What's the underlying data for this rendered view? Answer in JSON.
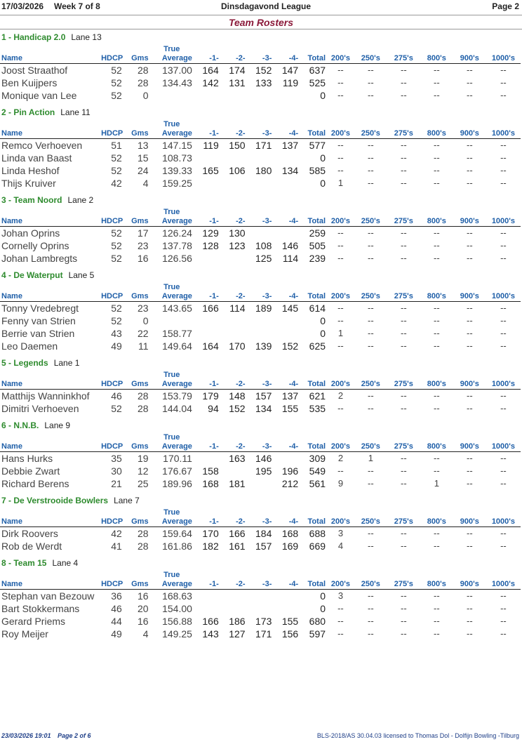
{
  "header": {
    "date": "17/03/2026",
    "week": "Week 7 of 8",
    "league": "Dinsdagavond League",
    "page": "Page 2"
  },
  "title": "Team Rosters",
  "columns": {
    "true_label": "True",
    "labels": [
      "Name",
      "HDCP",
      "Gms",
      "Average",
      "-1-",
      "-2-",
      "-3-",
      "-4-",
      "Total",
      "200's",
      "250's",
      "275's",
      "800's",
      "900's",
      "1000's"
    ]
  },
  "teams": [
    {
      "name": "1 - Handicap 2.0",
      "lane": "Lane 13",
      "players": [
        {
          "name": "Joost Straathof",
          "hdcp": "52",
          "gms": "28",
          "avg": "137.00",
          "g1": "164",
          "g2": "174",
          "g3": "152",
          "g4": "147",
          "total": "637",
          "s200": "--",
          "s250": "--",
          "s275": "--",
          "s800": "--",
          "s900": "--",
          "s1000": "--"
        },
        {
          "name": "Ben Kuijpers",
          "hdcp": "52",
          "gms": "28",
          "avg": "134.43",
          "g1": "142",
          "g2": "131",
          "g3": "133",
          "g4": "119",
          "total": "525",
          "s200": "--",
          "s250": "--",
          "s275": "--",
          "s800": "--",
          "s900": "--",
          "s1000": "--"
        },
        {
          "name": "Monique van Lee",
          "hdcp": "52",
          "gms": "0",
          "avg": "",
          "g1": "",
          "g2": "",
          "g3": "",
          "g4": "",
          "total": "0",
          "s200": "--",
          "s250": "--",
          "s275": "--",
          "s800": "--",
          "s900": "--",
          "s1000": "--"
        }
      ]
    },
    {
      "name": "2 - Pin Action",
      "lane": "Lane 11",
      "players": [
        {
          "name": "Remco Verhoeven",
          "hdcp": "51",
          "gms": "13",
          "avg": "147.15",
          "g1": "119",
          "g2": "150",
          "g3": "171",
          "g4": "137",
          "total": "577",
          "s200": "--",
          "s250": "--",
          "s275": "--",
          "s800": "--",
          "s900": "--",
          "s1000": "--"
        },
        {
          "name": "Linda van Baast",
          "hdcp": "52",
          "gms": "15",
          "avg": "108.73",
          "g1": "",
          "g2": "",
          "g3": "",
          "g4": "",
          "total": "0",
          "s200": "--",
          "s250": "--",
          "s275": "--",
          "s800": "--",
          "s900": "--",
          "s1000": "--"
        },
        {
          "name": "Linda Heshof",
          "hdcp": "52",
          "gms": "24",
          "avg": "139.33",
          "g1": "165",
          "g2": "106",
          "g3": "180",
          "g4": "134",
          "total": "585",
          "s200": "--",
          "s250": "--",
          "s275": "--",
          "s800": "--",
          "s900": "--",
          "s1000": "--"
        },
        {
          "name": "Thijs Kruiver",
          "hdcp": "42",
          "gms": "4",
          "avg": "159.25",
          "g1": "",
          "g2": "",
          "g3": "",
          "g4": "",
          "total": "0",
          "s200": "1",
          "s250": "--",
          "s275": "--",
          "s800": "--",
          "s900": "--",
          "s1000": "--"
        }
      ]
    },
    {
      "name": "3 - Team Noord",
      "lane": "Lane 2",
      "players": [
        {
          "name": "Johan Oprins",
          "hdcp": "52",
          "gms": "17",
          "avg": "126.24",
          "g1": "129",
          "g2": "130",
          "g3": "",
          "g4": "",
          "total": "259",
          "s200": "--",
          "s250": "--",
          "s275": "--",
          "s800": "--",
          "s900": "--",
          "s1000": "--"
        },
        {
          "name": "Cornelly Oprins",
          "hdcp": "52",
          "gms": "23",
          "avg": "137.78",
          "g1": "128",
          "g2": "123",
          "g3": "108",
          "g4": "146",
          "total": "505",
          "s200": "--",
          "s250": "--",
          "s275": "--",
          "s800": "--",
          "s900": "--",
          "s1000": "--"
        },
        {
          "name": "Johan Lambregts",
          "hdcp": "52",
          "gms": "16",
          "avg": "126.56",
          "g1": "",
          "g2": "",
          "g3": "125",
          "g4": "114",
          "total": "239",
          "s200": "--",
          "s250": "--",
          "s275": "--",
          "s800": "--",
          "s900": "--",
          "s1000": "--"
        }
      ]
    },
    {
      "name": "4 - De Waterput",
      "lane": "Lane 5",
      "players": [
        {
          "name": "Tonny Vredebregt",
          "hdcp": "52",
          "gms": "23",
          "avg": "143.65",
          "g1": "166",
          "g2": "114",
          "g3": "189",
          "g4": "145",
          "total": "614",
          "s200": "--",
          "s250": "--",
          "s275": "--",
          "s800": "--",
          "s900": "--",
          "s1000": "--"
        },
        {
          "name": "Fenny van Strien",
          "hdcp": "52",
          "gms": "0",
          "avg": "",
          "g1": "",
          "g2": "",
          "g3": "",
          "g4": "",
          "total": "0",
          "s200": "--",
          "s250": "--",
          "s275": "--",
          "s800": "--",
          "s900": "--",
          "s1000": "--"
        },
        {
          "name": "Berrie van Strien",
          "hdcp": "43",
          "gms": "22",
          "avg": "158.77",
          "g1": "",
          "g2": "",
          "g3": "",
          "g4": "",
          "total": "0",
          "s200": "1",
          "s250": "--",
          "s275": "--",
          "s800": "--",
          "s900": "--",
          "s1000": "--"
        },
        {
          "name": "Leo Daemen",
          "hdcp": "49",
          "gms": "11",
          "avg": "149.64",
          "g1": "164",
          "g2": "170",
          "g3": "139",
          "g4": "152",
          "total": "625",
          "s200": "--",
          "s250": "--",
          "s275": "--",
          "s800": "--",
          "s900": "--",
          "s1000": "--"
        }
      ]
    },
    {
      "name": "5 - Legends",
      "lane": "Lane 1",
      "players": [
        {
          "name": "Matthijs Wanninkhof",
          "hdcp": "46",
          "gms": "28",
          "avg": "153.79",
          "g1": "179",
          "g2": "148",
          "g3": "157",
          "g4": "137",
          "total": "621",
          "s200": "2",
          "s250": "--",
          "s275": "--",
          "s800": "--",
          "s900": "--",
          "s1000": "--"
        },
        {
          "name": "Dimitri Verhoeven",
          "hdcp": "52",
          "gms": "28",
          "avg": "144.04",
          "g1": "94",
          "g2": "152",
          "g3": "134",
          "g4": "155",
          "total": "535",
          "s200": "--",
          "s250": "--",
          "s275": "--",
          "s800": "--",
          "s900": "--",
          "s1000": "--"
        }
      ]
    },
    {
      "name": "6 - N.N.B.",
      "lane": "Lane 9",
      "players": [
        {
          "name": "Hans Hurks",
          "hdcp": "35",
          "gms": "19",
          "avg": "170.11",
          "g1": "",
          "g2": "163",
          "g3": "146",
          "g4": "",
          "total": "309",
          "s200": "2",
          "s250": "1",
          "s275": "--",
          "s800": "--",
          "s900": "--",
          "s1000": "--"
        },
        {
          "name": "Debbie Zwart",
          "hdcp": "30",
          "gms": "12",
          "avg": "176.67",
          "g1": "158",
          "g2": "",
          "g3": "195",
          "g4": "196",
          "total": "549",
          "s200": "--",
          "s250": "--",
          "s275": "--",
          "s800": "--",
          "s900": "--",
          "s1000": "--"
        },
        {
          "name": "Richard Berens",
          "hdcp": "21",
          "gms": "25",
          "avg": "189.96",
          "g1": "168",
          "g2": "181",
          "g3": "",
          "g4": "212",
          "total": "561",
          "s200": "9",
          "s250": "--",
          "s275": "--",
          "s800": "1",
          "s900": "--",
          "s1000": "--"
        }
      ]
    },
    {
      "name": "7 - De Verstrooide Bowlers",
      "lane": "Lane 7",
      "players": [
        {
          "name": "Dirk Roovers",
          "hdcp": "42",
          "gms": "28",
          "avg": "159.64",
          "g1": "170",
          "g2": "166",
          "g3": "184",
          "g4": "168",
          "total": "688",
          "s200": "3",
          "s250": "--",
          "s275": "--",
          "s800": "--",
          "s900": "--",
          "s1000": "--"
        },
        {
          "name": "Rob de Werdt",
          "hdcp": "41",
          "gms": "28",
          "avg": "161.86",
          "g1": "182",
          "g2": "161",
          "g3": "157",
          "g4": "169",
          "total": "669",
          "s200": "4",
          "s250": "--",
          "s275": "--",
          "s800": "--",
          "s900": "--",
          "s1000": "--"
        }
      ]
    },
    {
      "name": "8 - Team 15",
      "lane": "Lane 4",
      "players": [
        {
          "name": "Stephan van Bezouw",
          "hdcp": "36",
          "gms": "16",
          "avg": "168.63",
          "g1": "",
          "g2": "",
          "g3": "",
          "g4": "",
          "total": "0",
          "s200": "3",
          "s250": "--",
          "s275": "--",
          "s800": "--",
          "s900": "--",
          "s1000": "--"
        },
        {
          "name": "Bart Stokkermans",
          "hdcp": "46",
          "gms": "20",
          "avg": "154.00",
          "g1": "",
          "g2": "",
          "g3": "",
          "g4": "",
          "total": "0",
          "s200": "--",
          "s250": "--",
          "s275": "--",
          "s800": "--",
          "s900": "--",
          "s1000": "--"
        },
        {
          "name": "Gerard Priems",
          "hdcp": "44",
          "gms": "16",
          "avg": "156.88",
          "g1": "166",
          "g2": "186",
          "g3": "173",
          "g4": "155",
          "total": "680",
          "s200": "--",
          "s250": "--",
          "s275": "--",
          "s800": "--",
          "s900": "--",
          "s1000": "--"
        },
        {
          "name": "Roy Meijer",
          "hdcp": "49",
          "gms": "4",
          "avg": "149.25",
          "g1": "143",
          "g2": "127",
          "g3": "171",
          "g4": "156",
          "total": "597",
          "s200": "--",
          "s250": "--",
          "s275": "--",
          "s800": "--",
          "s900": "--",
          "s1000": "--"
        }
      ]
    }
  ],
  "footer": {
    "datetime": "23/03/2026 19:01",
    "page": "Page 2 of 6",
    "license": "BLS-2018/AS 30.04.03 licensed to Thomas Dol - Dolfijn Bowling -Tilburg"
  }
}
